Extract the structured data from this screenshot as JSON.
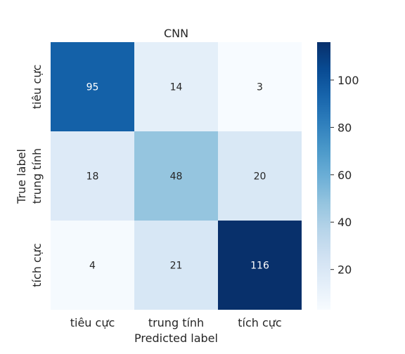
{
  "chart_data": {
    "type": "heatmap",
    "title": "CNN",
    "xlabel": "Predicted label",
    "ylabel": "True label",
    "x_categories": [
      "tiêu cực",
      "trung tính",
      "tích cực"
    ],
    "y_categories": [
      "tiêu cực",
      "trung tính",
      "tích cực"
    ],
    "values": [
      [
        95,
        14,
        3
      ],
      [
        18,
        48,
        20
      ],
      [
        4,
        21,
        116
      ]
    ],
    "colorbar": {
      "ticks": [
        20,
        40,
        60,
        80,
        100
      ],
      "tick_labels": [
        "20",
        "40",
        "60",
        "80",
        "100"
      ],
      "range": [
        3,
        116
      ],
      "colormap": "Blues"
    },
    "grid": false
  }
}
